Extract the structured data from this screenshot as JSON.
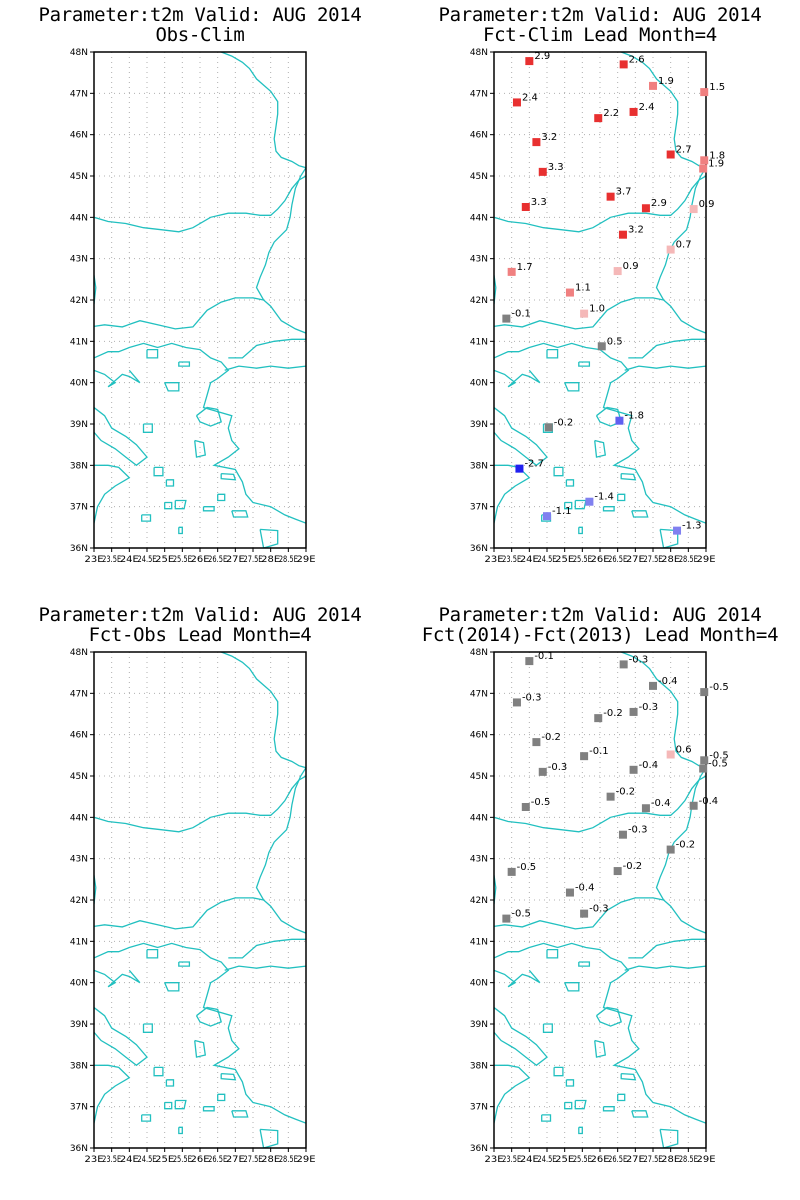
{
  "panels": [
    {
      "id": "obs-clim",
      "title_line1": "Parameter:t2m Valid: AUG 2014",
      "title_line2": "Obs-Clim",
      "points": []
    },
    {
      "id": "fct-clim",
      "title_line1": "Parameter:t2m Valid: AUG 2014",
      "title_line2": "Fct-Clim Lead Month=4",
      "points": [
        {
          "lon": 24.0,
          "lat": 47.78,
          "label": "2.9",
          "color": "#e83030"
        },
        {
          "lon": 26.67,
          "lat": 47.7,
          "label": "2.6",
          "color": "#e83030"
        },
        {
          "lon": 27.5,
          "lat": 47.18,
          "label": "1.9",
          "color": "#f08080"
        },
        {
          "lon": 28.95,
          "lat": 47.03,
          "label": "1.5",
          "color": "#f08080"
        },
        {
          "lon": 23.65,
          "lat": 46.78,
          "label": "2.4",
          "color": "#e83030"
        },
        {
          "lon": 25.95,
          "lat": 46.4,
          "label": "2.2",
          "color": "#e83030"
        },
        {
          "lon": 26.95,
          "lat": 46.55,
          "label": "2.4",
          "color": "#e83030"
        },
        {
          "lon": 24.2,
          "lat": 45.82,
          "label": "3.2",
          "color": "#e83030"
        },
        {
          "lon": 28.0,
          "lat": 45.52,
          "label": "2.7",
          "color": "#e83030"
        },
        {
          "lon": 28.95,
          "lat": 45.38,
          "label": "1.8",
          "color": "#f08080"
        },
        {
          "lon": 28.92,
          "lat": 45.18,
          "label": "1.9",
          "color": "#f08080"
        },
        {
          "lon": 24.38,
          "lat": 45.1,
          "label": "3.3",
          "color": "#e83030"
        },
        {
          "lon": 26.3,
          "lat": 44.5,
          "label": "3.7",
          "color": "#e83030"
        },
        {
          "lon": 27.3,
          "lat": 44.22,
          "label": "2.9",
          "color": "#e83030"
        },
        {
          "lon": 28.65,
          "lat": 44.2,
          "label": "0.9",
          "color": "#f5b8b8"
        },
        {
          "lon": 23.9,
          "lat": 44.25,
          "label": "3.3",
          "color": "#e83030"
        },
        {
          "lon": 26.65,
          "lat": 43.58,
          "label": "3.2",
          "color": "#e83030"
        },
        {
          "lon": 28.0,
          "lat": 43.22,
          "label": "0.7",
          "color": "#f5b8b8"
        },
        {
          "lon": 23.5,
          "lat": 42.68,
          "label": "1.7",
          "color": "#f08080"
        },
        {
          "lon": 26.5,
          "lat": 42.7,
          "label": "0.9",
          "color": "#f5b8b8"
        },
        {
          "lon": 25.15,
          "lat": 42.18,
          "label": "1.1",
          "color": "#f08080"
        },
        {
          "lon": 25.55,
          "lat": 41.67,
          "label": "1.0",
          "color": "#f5b8b8"
        },
        {
          "lon": 23.35,
          "lat": 41.55,
          "label": "-0.1",
          "color": "#808080"
        },
        {
          "lon": 26.05,
          "lat": 40.88,
          "label": "0.5",
          "color": "#808080"
        },
        {
          "lon": 24.55,
          "lat": 38.92,
          "label": "-0.2",
          "color": "#808080"
        },
        {
          "lon": 26.55,
          "lat": 39.08,
          "label": "-1.8",
          "color": "#6060f0"
        },
        {
          "lon": 23.72,
          "lat": 37.92,
          "label": "-2.7",
          "color": "#2020f0"
        },
        {
          "lon": 25.7,
          "lat": 37.12,
          "label": "-1.4",
          "color": "#8080f0"
        },
        {
          "lon": 24.5,
          "lat": 36.77,
          "label": "-1.1",
          "color": "#8080f0"
        },
        {
          "lon": 28.18,
          "lat": 36.42,
          "label": "-1.3",
          "color": "#8080f0"
        }
      ]
    },
    {
      "id": "fct-obs",
      "title_line1": "Parameter:t2m Valid: AUG 2014",
      "title_line2": "Fct-Obs Lead Month=4",
      "points": []
    },
    {
      "id": "fct-diff",
      "title_line1": "Parameter:t2m Valid: AUG 2014",
      "title_line2": "Fct(2014)-Fct(2013) Lead Month=4",
      "points": [
        {
          "lon": 24.0,
          "lat": 47.78,
          "label": "-0.1",
          "color": "#808080"
        },
        {
          "lon": 26.67,
          "lat": 47.7,
          "label": "-0.3",
          "color": "#808080"
        },
        {
          "lon": 27.5,
          "lat": 47.18,
          "label": "-0.4",
          "color": "#808080"
        },
        {
          "lon": 28.95,
          "lat": 47.03,
          "label": "-0.5",
          "color": "#808080"
        },
        {
          "lon": 23.65,
          "lat": 46.78,
          "label": "-0.3",
          "color": "#808080"
        },
        {
          "lon": 25.95,
          "lat": 46.4,
          "label": "-0.2",
          "color": "#808080"
        },
        {
          "lon": 26.95,
          "lat": 46.55,
          "label": "-0.3",
          "color": "#808080"
        },
        {
          "lon": 24.2,
          "lat": 45.82,
          "label": "-0.2",
          "color": "#808080"
        },
        {
          "lon": 28.0,
          "lat": 45.52,
          "label": "0.6",
          "color": "#f5b8b8"
        },
        {
          "lon": 28.95,
          "lat": 45.38,
          "label": "-0.5",
          "color": "#808080"
        },
        {
          "lon": 28.92,
          "lat": 45.18,
          "label": "-0.5",
          "color": "#808080"
        },
        {
          "lon": 25.55,
          "lat": 45.48,
          "label": "-0.1",
          "color": "#808080"
        },
        {
          "lon": 24.38,
          "lat": 45.1,
          "label": "-0.3",
          "color": "#808080"
        },
        {
          "lon": 26.95,
          "lat": 45.15,
          "label": "-0.4",
          "color": "#808080"
        },
        {
          "lon": 26.3,
          "lat": 44.5,
          "label": "-0.2",
          "color": "#808080"
        },
        {
          "lon": 27.3,
          "lat": 44.22,
          "label": "-0.4",
          "color": "#808080"
        },
        {
          "lon": 28.65,
          "lat": 44.28,
          "label": "-0.4",
          "color": "#808080"
        },
        {
          "lon": 23.9,
          "lat": 44.25,
          "label": "-0.5",
          "color": "#808080"
        },
        {
          "lon": 26.65,
          "lat": 43.58,
          "label": "-0.3",
          "color": "#808080"
        },
        {
          "lon": 28.0,
          "lat": 43.22,
          "label": "-0.2",
          "color": "#808080"
        },
        {
          "lon": 23.5,
          "lat": 42.68,
          "label": "-0.5",
          "color": "#808080"
        },
        {
          "lon": 26.5,
          "lat": 42.7,
          "label": "-0.2",
          "color": "#808080"
        },
        {
          "lon": 25.15,
          "lat": 42.18,
          "label": "-0.4",
          "color": "#808080"
        },
        {
          "lon": 25.55,
          "lat": 41.67,
          "label": "-0.3",
          "color": "#808080"
        },
        {
          "lon": 23.35,
          "lat": 41.55,
          "label": "-0.5",
          "color": "#808080"
        }
      ]
    }
  ],
  "axes": {
    "lon_ticks": [
      "23E",
      "23.5E",
      "24E",
      "24.5E",
      "25E",
      "25.5E",
      "26E",
      "26.5E",
      "27E",
      "27.5E",
      "28E",
      "28.5E",
      "29E"
    ],
    "lat_ticks": [
      "36N",
      "37N",
      "38N",
      "39N",
      "40N",
      "41N",
      "42N",
      "43N",
      "44N",
      "45N",
      "46N",
      "47N",
      "48N"
    ],
    "lon_range": [
      23,
      29
    ],
    "lat_range": [
      36,
      48
    ],
    "grid": true
  },
  "colors": {
    "coastline": "#22c0c0",
    "grid": "#b0b0b0",
    "frame": "#000000"
  }
}
